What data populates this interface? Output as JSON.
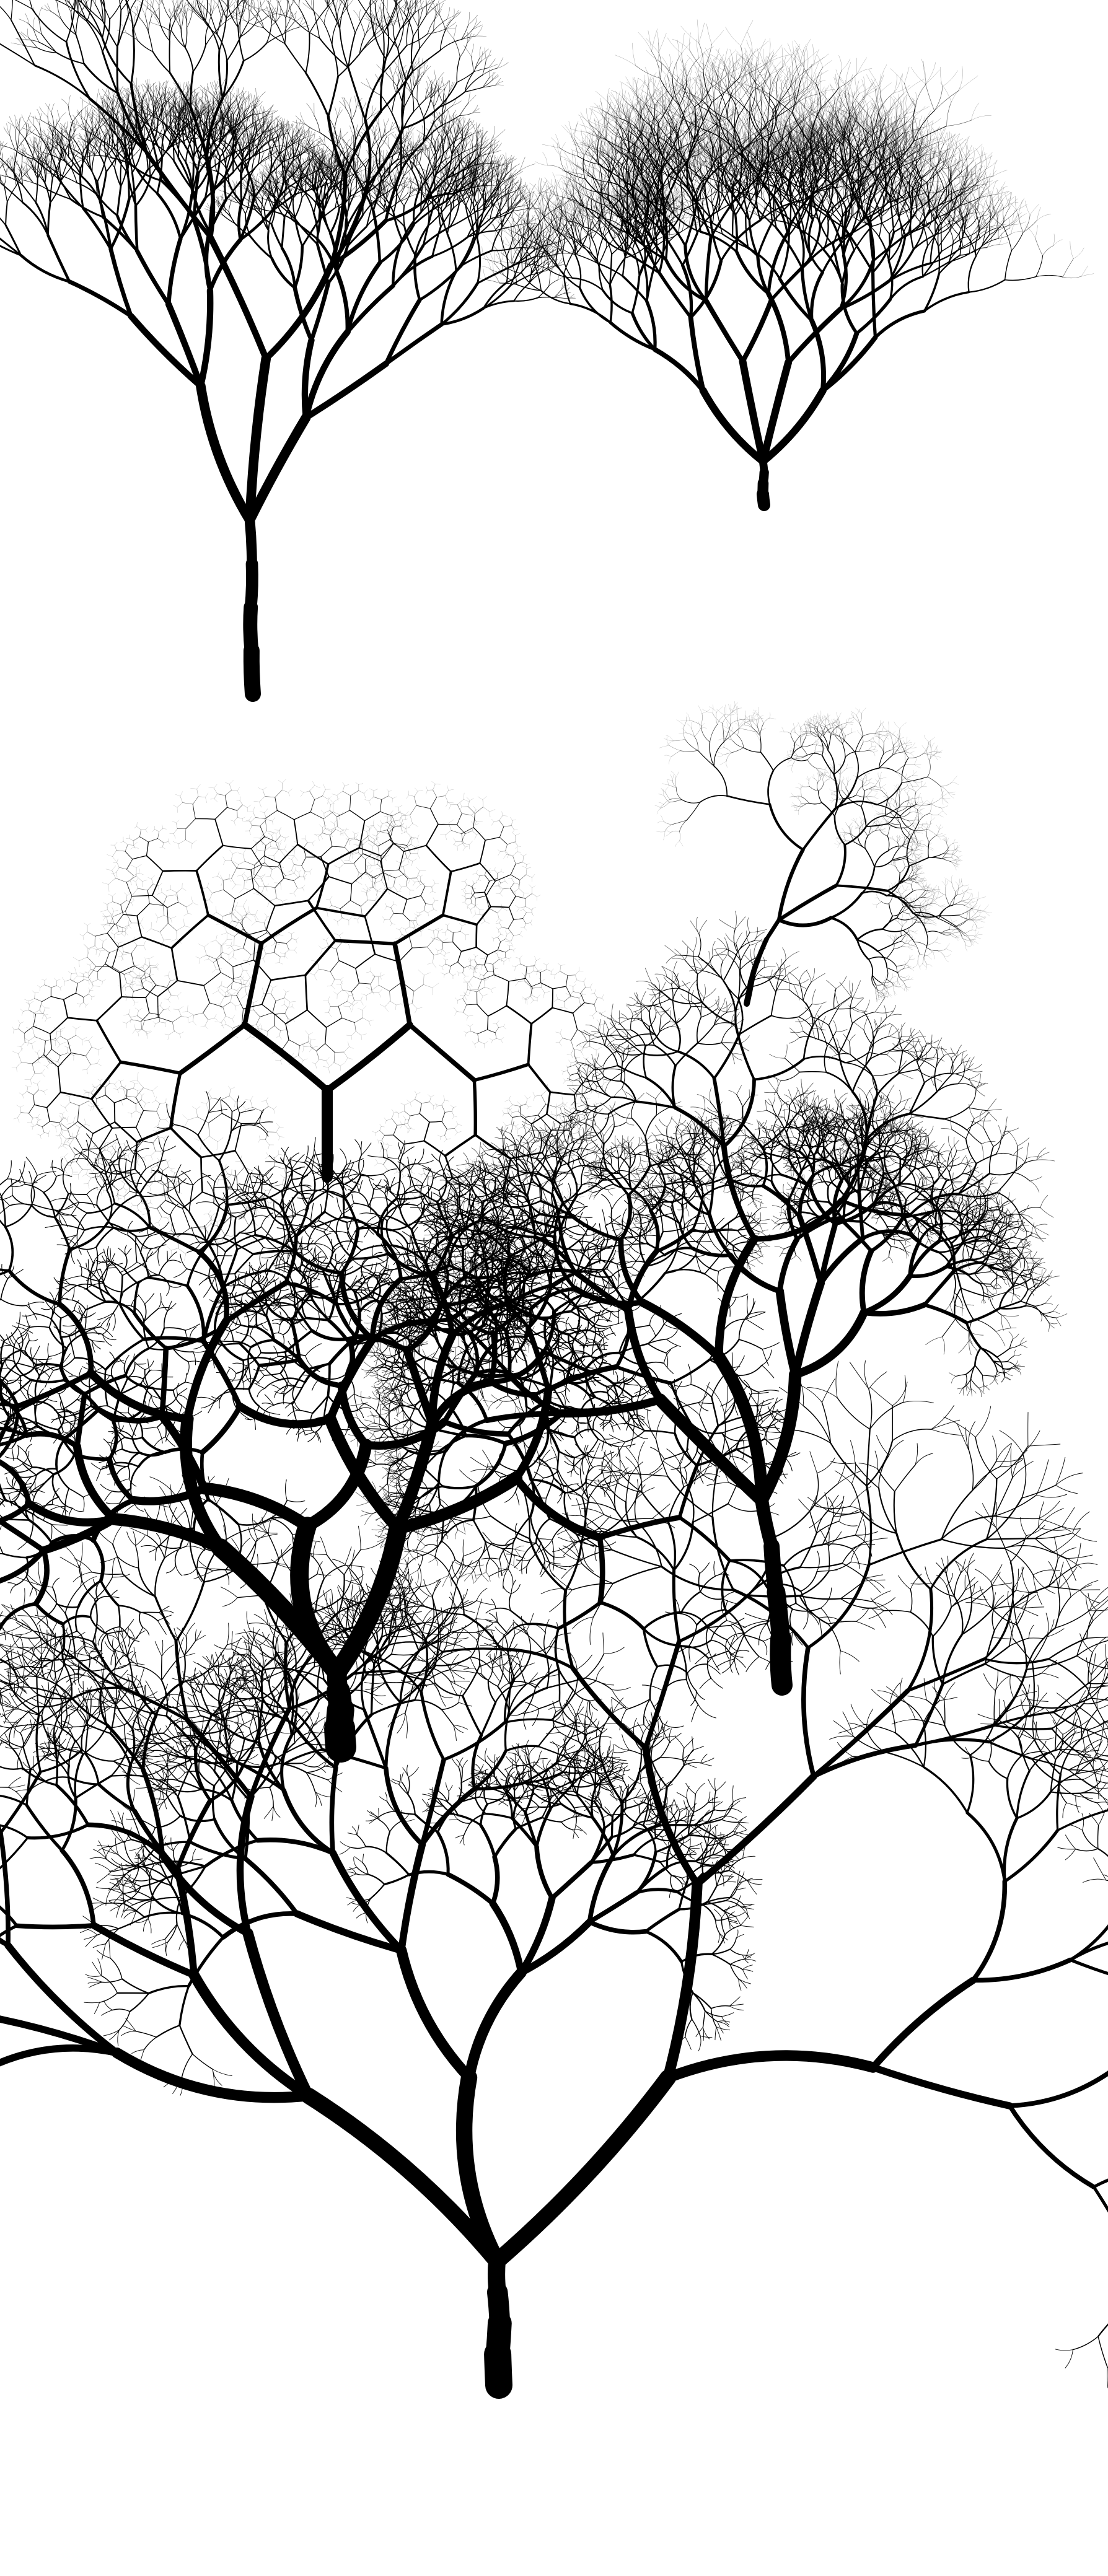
{
  "background": "#ffffff",
  "ink": "#000000",
  "tree_count": 7,
  "trees": [
    {
      "name": "tree-conifer-tall",
      "style": "upright dense conifer-like fractal, thin trunk"
    },
    {
      "name": "tree-bush-wispy",
      "style": "short trunk, wide brush of fine upward strokes"
    },
    {
      "name": "tree-sparse-twisted",
      "style": "small leaning tree, sparse spiky branches"
    },
    {
      "name": "tree-honeycomb-fractal",
      "style": "straight trunk, Y-split into hexagonal cell fractal"
    },
    {
      "name": "tree-dense-canopy",
      "style": "thick trunk, curling branch clusters"
    },
    {
      "name": "tree-windswept",
      "style": "thick short trunk, drooping hair-like strands"
    },
    {
      "name": "tree-wide-spread",
      "style": "large spreading tree, open branching crown"
    }
  ]
}
